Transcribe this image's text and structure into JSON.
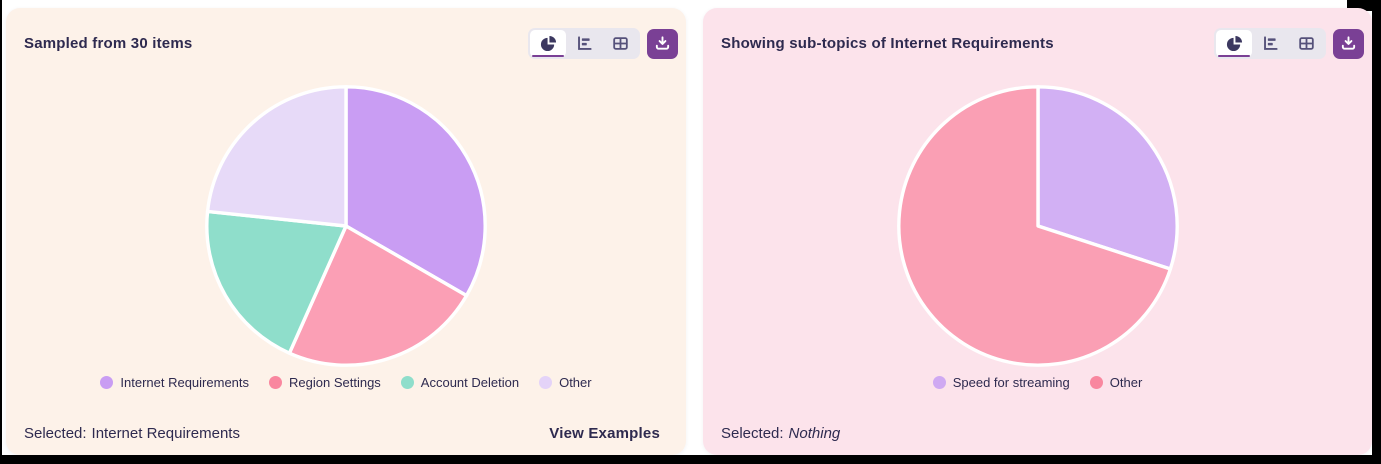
{
  "frame": {
    "border_color": "#000000",
    "background": "#ffffff"
  },
  "text_color": "#2e2a4f",
  "accent_purple": "#7a4095",
  "toolbar": {
    "icons": [
      "pie-chart-icon",
      "bar-chart-icon",
      "table-icon",
      "download-icon"
    ],
    "active_tab": "pie"
  },
  "panels": [
    {
      "title": "Sampled from 30 items",
      "background": "#fdf2e9",
      "footer": {
        "selected_label": "Selected:",
        "selected_value": "Internet Requirements",
        "action_label": "View Examples"
      }
    },
    {
      "title": "Showing sub-topics of Internet Requirements",
      "background": "#fce3eb",
      "footer": {
        "selected_label": "Selected:",
        "selected_value": "Nothing"
      }
    }
  ],
  "chart_data": [
    {
      "type": "pie",
      "labels": [
        "Internet Requirements",
        "Region Settings",
        "Account Deletion",
        "Other"
      ],
      "values": [
        10,
        7,
        6,
        7
      ],
      "total_items": 30,
      "colors": [
        "#c99df3",
        "#fb9fb5",
        "#8fdecb",
        "#e7daf8"
      ],
      "legend_dot_colors": [
        "#c99df3",
        "#f9879f",
        "#8fdecb",
        "#e4d3f8"
      ],
      "legend_position": "bottom",
      "start_angle_deg": -90,
      "direction": "clockwise",
      "slice_border_color": "#ffffff"
    },
    {
      "type": "pie",
      "labels": [
        "Speed for streaming",
        "Other"
      ],
      "values": [
        3,
        7
      ],
      "colors": [
        "#d2b0f4",
        "#fa9fb4"
      ],
      "legend_dot_colors": [
        "#cfa9f2",
        "#f9879f"
      ],
      "legend_position": "bottom",
      "start_angle_deg": -90,
      "direction": "clockwise",
      "slice_border_color": "#ffffff"
    }
  ]
}
